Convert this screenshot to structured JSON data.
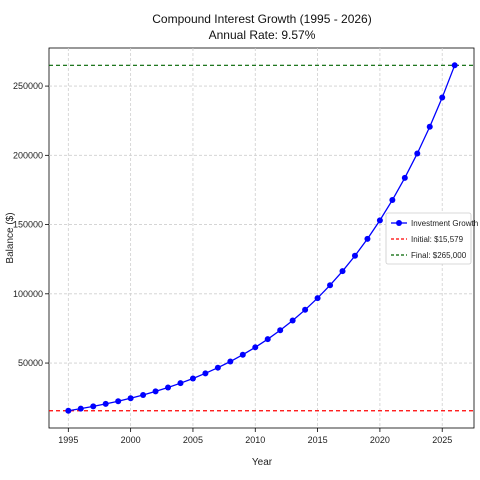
{
  "chart_data": {
    "type": "line",
    "title": "Compound Interest Growth (1995 - 2026)",
    "subtitle": "Annual Rate: 9.57%",
    "xlabel": "Year",
    "ylabel": "Balance ($)",
    "xlim": [
      1993.45,
      2027.55
    ],
    "ylim": [
      3100,
      277500
    ],
    "grid": true,
    "legend_position": "center-right",
    "x_ticks": [
      1995,
      2000,
      2005,
      2010,
      2015,
      2020,
      2025
    ],
    "y_ticks": [
      50000,
      100000,
      150000,
      200000,
      250000
    ],
    "x_tick_labels": [
      "1995",
      "2000",
      "2005",
      "2010",
      "2015",
      "2020",
      "2025"
    ],
    "y_tick_labels": [
      "50000",
      "100000",
      "150000",
      "200000",
      "250000"
    ],
    "series": [
      {
        "name": "Investment Growth",
        "color": "#0000ff",
        "x": [
          1995,
          1996,
          1997,
          1998,
          1999,
          2000,
          2001,
          2002,
          2003,
          2004,
          2005,
          2006,
          2007,
          2008,
          2009,
          2010,
          2011,
          2012,
          2013,
          2014,
          2015,
          2016,
          2017,
          2018,
          2019,
          2020,
          2021,
          2022,
          2023,
          2024,
          2025,
          2026
        ],
        "values": [
          15579,
          17070,
          18704,
          20494,
          22455,
          24604,
          26959,
          29539,
          32366,
          35463,
          38857,
          42576,
          46650,
          51115,
          56006,
          61366,
          67239,
          73674,
          80724,
          88449,
          96914,
          106189,
          116351,
          127486,
          139687,
          153055,
          167702,
          183751,
          201336,
          220604,
          241716,
          265000
        ]
      }
    ],
    "reference_lines": [
      {
        "name": "Initial: $15,579",
        "y": 15579,
        "color": "#ff0000",
        "style": "dashed"
      },
      {
        "name": "Final: $265,000",
        "y": 265000,
        "color": "#006400",
        "style": "dashed"
      }
    ]
  }
}
